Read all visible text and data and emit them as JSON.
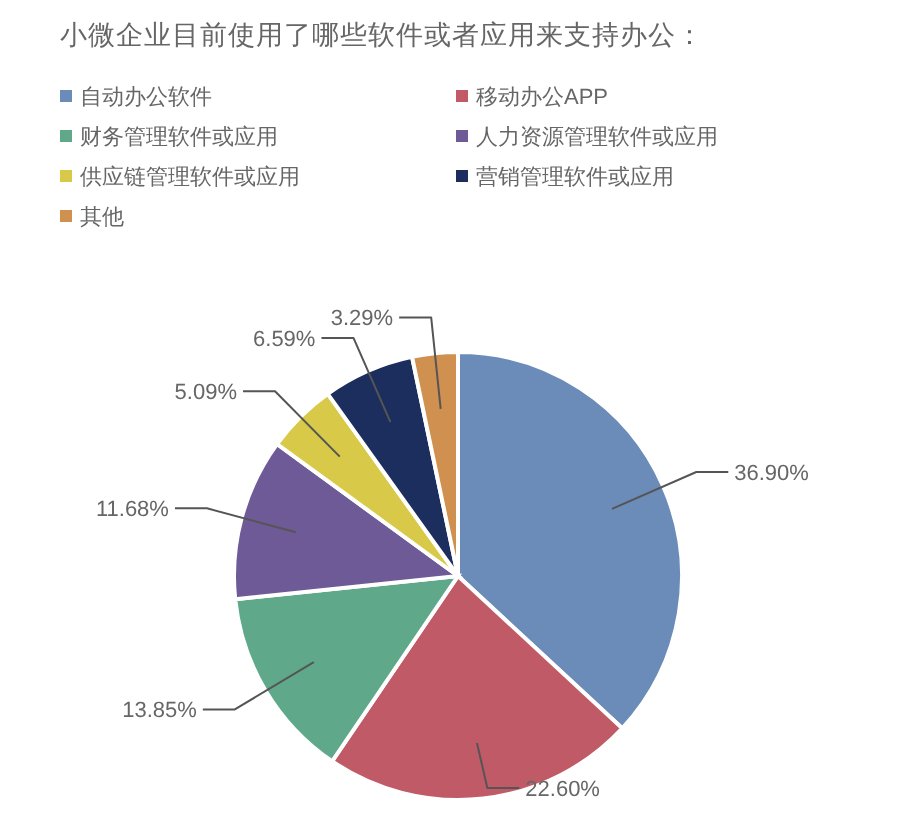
{
  "chart_data": {
    "type": "pie",
    "title": "小微企业目前使用了哪些软件或者应用来支持办公：",
    "categories": [
      "自动办公软件",
      "移动办公APP",
      "财务管理软件或应用",
      "人力资源管理软件或应用",
      "供应链管理软件或应用",
      "营销管理软件或应用",
      "其他"
    ],
    "values": [
      36.9,
      22.6,
      13.85,
      11.68,
      5.09,
      6.59,
      3.29
    ],
    "colors": [
      "#6b8cb8",
      "#c05a66",
      "#5fa88a",
      "#6e5a97",
      "#d9c948",
      "#1c2e5e",
      "#d09050"
    ],
    "value_labels": [
      "36.90%",
      "22.60%",
      "13.85%",
      "11.68%",
      "5.09%",
      "6.59%",
      "3.29%"
    ],
    "legend": "top"
  }
}
